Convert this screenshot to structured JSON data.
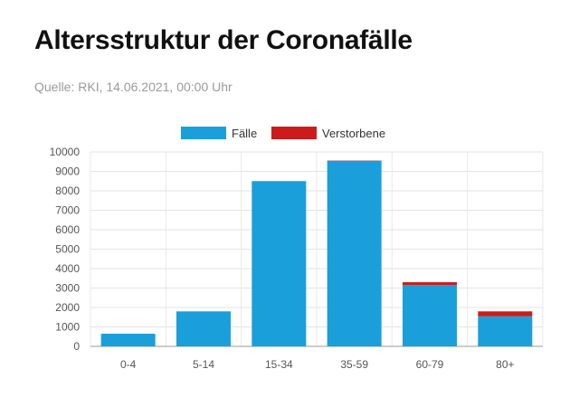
{
  "header": {
    "title": "Altersstruktur der Coronafälle",
    "source": "Quelle: RKI, 14.06.2021, 00:00 Uhr"
  },
  "chart_data": {
    "type": "bar",
    "stacked": true,
    "categories": [
      "0-4",
      "5-14",
      "15-34",
      "35-59",
      "60-79",
      "80+"
    ],
    "series": [
      {
        "name": "Fälle",
        "color": "#1a9fdb",
        "values": [
          650,
          1800,
          8500,
          9550,
          3150,
          1550
        ]
      },
      {
        "name": "Verstorbene",
        "color": "#cc1b1b",
        "values": [
          0,
          0,
          0,
          10,
          150,
          250
        ]
      }
    ],
    "ylim": [
      0,
      10000
    ],
    "yticks": [
      0,
      1000,
      2000,
      3000,
      4000,
      5000,
      6000,
      7000,
      8000,
      9000,
      10000
    ],
    "grid": true,
    "legend_position": "top-center",
    "title": "",
    "xlabel": "",
    "ylabel": ""
  }
}
